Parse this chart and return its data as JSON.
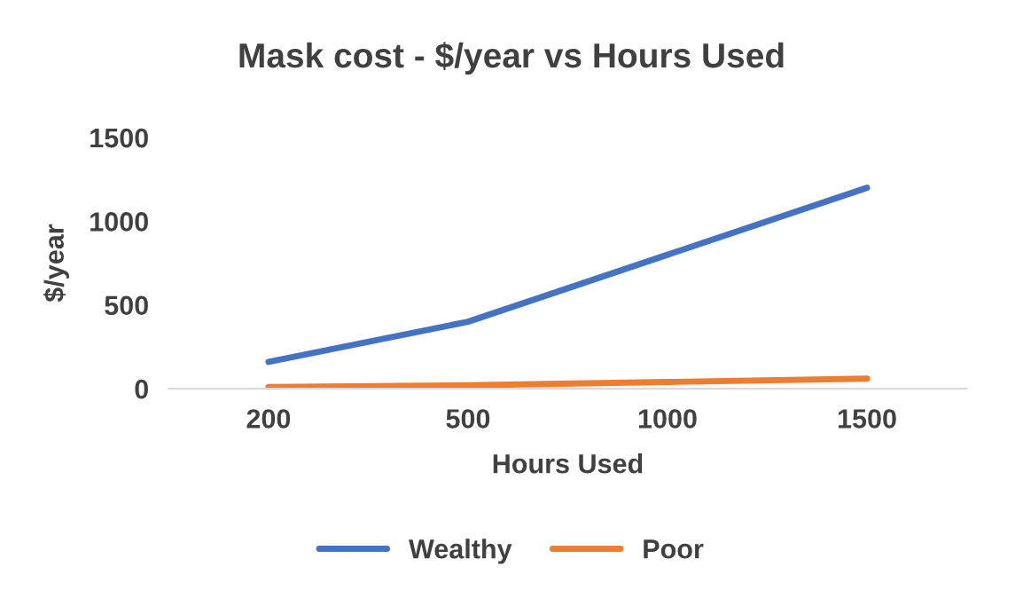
{
  "chart_data": {
    "type": "line",
    "title": "Mask cost - $/year vs Hours Used",
    "xlabel": "Hours Used",
    "ylabel": "$/year",
    "categories": [
      "200",
      "500",
      "1000",
      "1500"
    ],
    "series": [
      {
        "name": "Wealthy",
        "color": "#4472c4",
        "values": [
          160,
          400,
          800,
          1200
        ]
      },
      {
        "name": "Poor",
        "color": "#ed7d31",
        "values": [
          10,
          20,
          40,
          60
        ]
      }
    ],
    "ylim": [
      0,
      1500
    ],
    "yticks": [
      0,
      500,
      1000,
      1500
    ],
    "grid": false,
    "legend": "bottom",
    "marker": "none",
    "line_style": "solid"
  }
}
